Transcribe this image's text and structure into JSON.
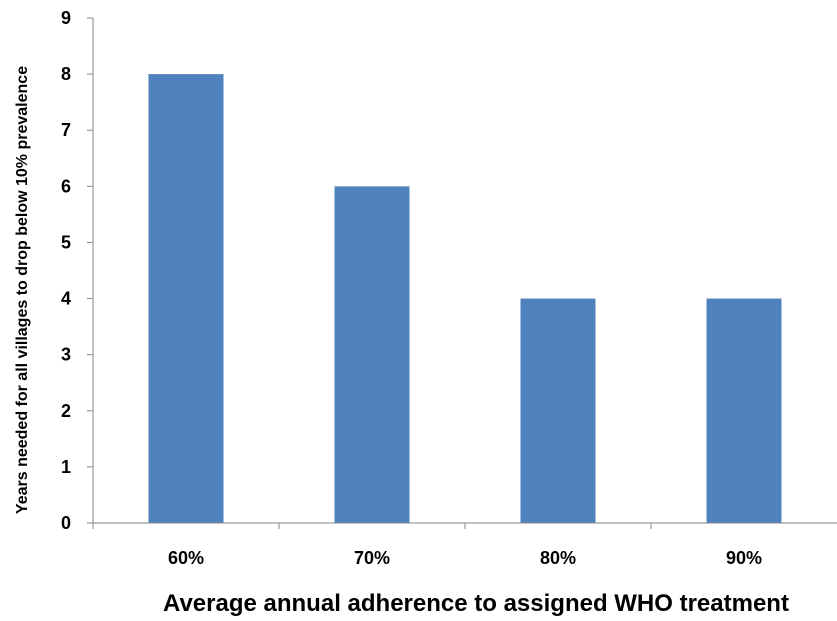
{
  "chart_data": {
    "type": "bar",
    "categories": [
      "60%",
      "70%",
      "80%",
      "90%"
    ],
    "values": [
      8,
      6,
      4,
      4
    ],
    "xlabel": "Average annual adherence to assigned WHO treatment",
    "ylabel": "Years needed for all villages to drop below 10% prevalence",
    "ylim": [
      0,
      9
    ],
    "yticks": [
      "0",
      "1",
      "2",
      "3",
      "4",
      "5",
      "6",
      "7",
      "8",
      "9"
    ],
    "grid": false,
    "legend": "none",
    "colors": {
      "bar": "#4F81BD",
      "axis": "#868686"
    }
  }
}
